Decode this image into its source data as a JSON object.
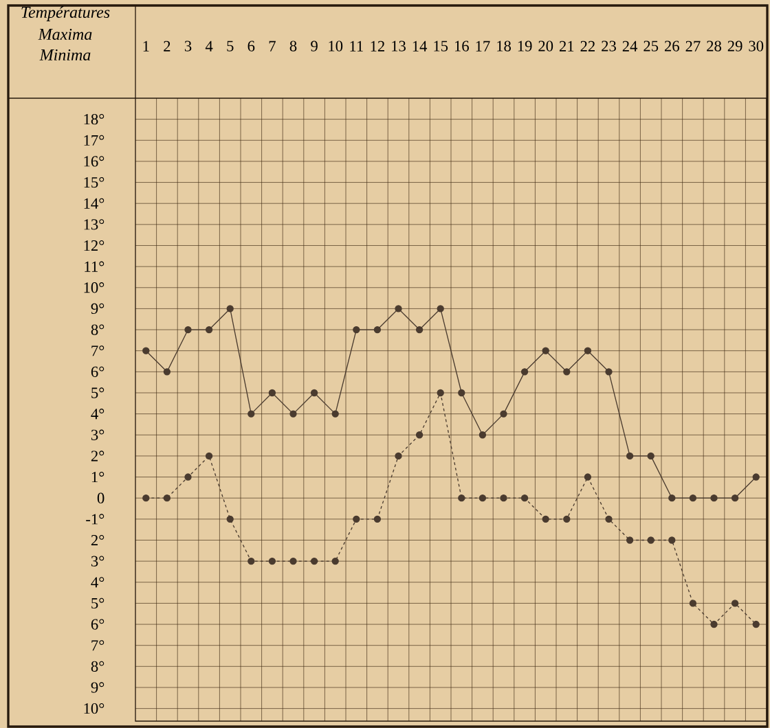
{
  "chart_data": {
    "type": "line",
    "ylabel": "Températures",
    "annotations": [
      "Maxima",
      "Minima"
    ],
    "categories": [
      "1",
      "2",
      "3",
      "4",
      "5",
      "6",
      "7",
      "8",
      "9",
      "10",
      "11",
      "12",
      "13",
      "14",
      "15",
      "16",
      "17",
      "18",
      "19",
      "20",
      "21",
      "22",
      "23",
      "24",
      "25",
      "26",
      "27",
      "28",
      "29",
      "30"
    ],
    "series": [
      {
        "color": "#4a3b2f",
        "line_style": "solid",
        "values": [
          7,
          6,
          8,
          8,
          9,
          4,
          5,
          4,
          5,
          4,
          8,
          8,
          9,
          8,
          9,
          5,
          3,
          4,
          6,
          7,
          6,
          7,
          6,
          2,
          2,
          0,
          0,
          0,
          0,
          1
        ]
      },
      {
        "color": "#4a3b2f",
        "line_style": "dashed",
        "values": [
          0,
          0,
          1,
          2,
          -1,
          -3,
          -3,
          -3,
          -3,
          -3,
          -1,
          -1,
          2,
          3,
          5,
          0,
          0,
          0,
          0,
          -1,
          -1,
          1,
          -1,
          -2,
          -2,
          -2,
          -5,
          -6,
          -5,
          -6
        ]
      }
    ],
    "ylim": [
      -10.6,
      19
    ],
    "yticks": [
      {
        "value": 18,
        "label": "18°"
      },
      {
        "value": 17,
        "label": "17°"
      },
      {
        "value": 16,
        "label": "16°"
      },
      {
        "value": 15,
        "label": "15°"
      },
      {
        "value": 14,
        "label": "14°"
      },
      {
        "value": 13,
        "label": "13°"
      },
      {
        "value": 12,
        "label": "12°"
      },
      {
        "value": 11,
        "label": "11°"
      },
      {
        "value": 10,
        "label": "10°"
      },
      {
        "value": 9,
        "label": "9°"
      },
      {
        "value": 8,
        "label": "8°"
      },
      {
        "value": 7,
        "label": "7°"
      },
      {
        "value": 6,
        "label": "6°"
      },
      {
        "value": 5,
        "label": "5°"
      },
      {
        "value": 4,
        "label": "4°"
      },
      {
        "value": 3,
        "label": "3°"
      },
      {
        "value": 2,
        "label": "2°"
      },
      {
        "value": 1,
        "label": "1°"
      },
      {
        "value": 0,
        "label": "0"
      },
      {
        "value": -1,
        "label": "-1°"
      },
      {
        "value": -2,
        "label": "2°"
      },
      {
        "value": -3,
        "label": "3°"
      },
      {
        "value": -4,
        "label": "4°"
      },
      {
        "value": -5,
        "label": "5°"
      },
      {
        "value": -6,
        "label": "6°"
      },
      {
        "value": -7,
        "label": "7°"
      },
      {
        "value": -8,
        "label": "8°"
      },
      {
        "value": -9,
        "label": "9°"
      },
      {
        "value": -10,
        "label": "10°"
      }
    ],
    "grid": true,
    "marker": "circle"
  }
}
